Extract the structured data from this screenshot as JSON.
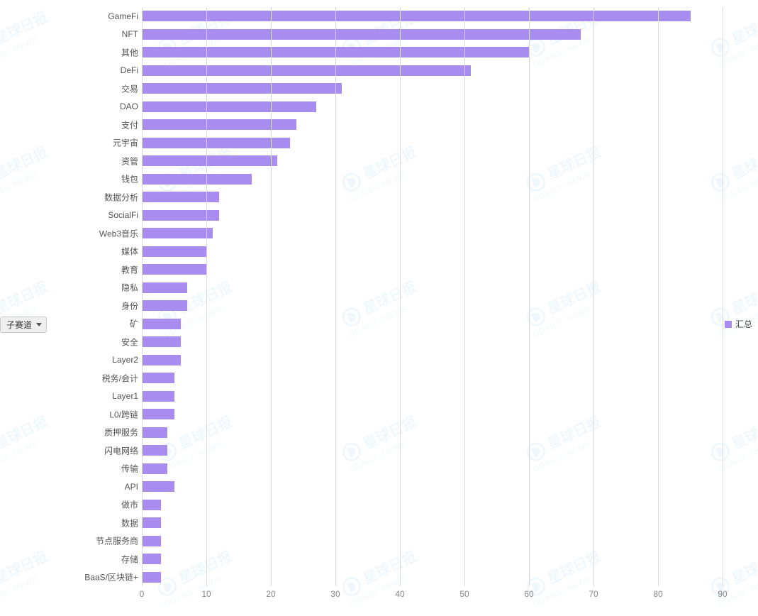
{
  "chart": {
    "type": "bar",
    "orientation": "horizontal",
    "categories": [
      "GameFi",
      "NFT",
      "其他",
      "DeFi",
      "交易",
      "DAO",
      "支付",
      "元宇宙",
      "资管",
      "钱包",
      "数据分析",
      "SocialFi",
      "Web3音乐",
      "媒体",
      "教育",
      "隐私",
      "身份",
      "矿",
      "安全",
      "Layer2",
      "税务/会计",
      "Layer1",
      "L0/跨链",
      "质押服务",
      "闪电网络",
      "传输",
      "API",
      "做市",
      "数据",
      "节点服务商",
      "存储",
      "BaaS/区块链+"
    ],
    "values": [
      85,
      68,
      60,
      51,
      31,
      27,
      24,
      23,
      21,
      17,
      12,
      12,
      11,
      10,
      10,
      7,
      7,
      6,
      6,
      6,
      5,
      5,
      5,
      4,
      4,
      4,
      5,
      3,
      3,
      3,
      3,
      3
    ],
    "bar_color": "#a98cf0",
    "background_color": "#ffffff",
    "grid_color": "#d9d9d9",
    "xlim": [
      0,
      90
    ],
    "xtick_step": 10,
    "xticks": [
      0,
      10,
      20,
      30,
      40,
      50,
      60,
      70,
      80,
      90
    ],
    "label_fontsize": 12,
    "label_color": "#555555",
    "tick_label_color": "#888888",
    "bar_width_ratio": 0.6,
    "row_count": 32
  },
  "dropdown": {
    "label": "子赛道"
  },
  "legend": {
    "label": "汇总",
    "color": "#a98cf0"
  },
  "watermark": {
    "text_main": "星球日报",
    "text_sub": "ODAILY. NEWS",
    "color": "#4aa8e0",
    "opacity": 0.08
  }
}
